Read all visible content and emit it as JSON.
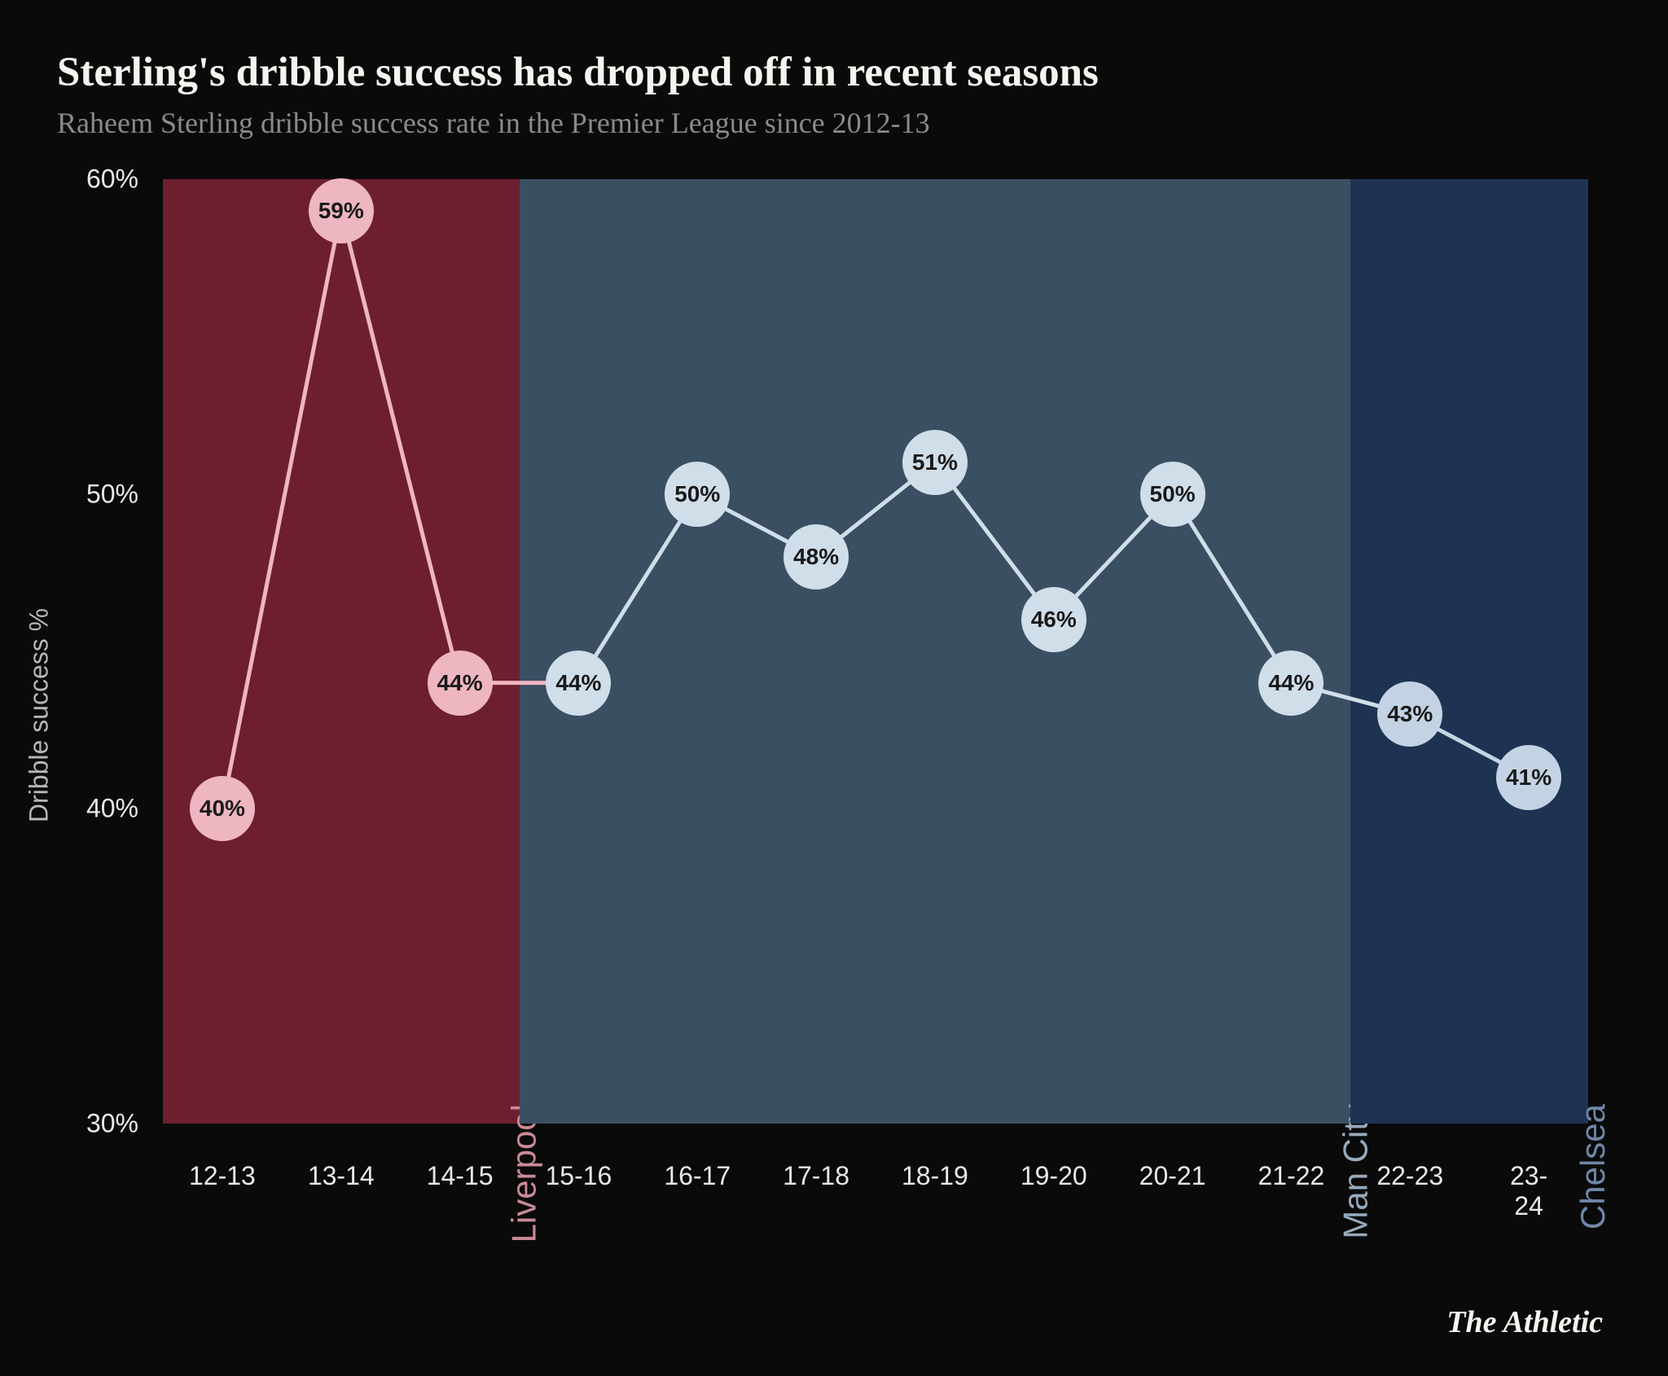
{
  "title": "Sterling's dribble success has dropped off in recent seasons",
  "subtitle": "Raheem Sterling dribble success rate in the Premier League since 2012-13",
  "ylabel": "Dribble success %",
  "source": "The Athletic",
  "background_color": "#0a0a0a",
  "title_color": "#f5f5f0",
  "subtitle_color": "#8a8a8a",
  "chart": {
    "type": "line",
    "ylim": [
      30,
      60
    ],
    "yticks": [
      30,
      40,
      50,
      60
    ],
    "ytick_labels": [
      "30%",
      "40%",
      "50%",
      "60%"
    ],
    "xtick_labels": [
      "12-13",
      "13-14",
      "14-15",
      "15-16",
      "16-17",
      "17-18",
      "18-19",
      "19-20",
      "20-21",
      "21-22",
      "22-23",
      "23-24"
    ],
    "values": [
      40,
      59,
      44,
      44,
      50,
      48,
      51,
      46,
      50,
      44,
      43,
      41
    ],
    "point_labels": [
      "40%",
      "59%",
      "44%",
      "44%",
      "50%",
      "48%",
      "51%",
      "46%",
      "50%",
      "44%",
      "43%",
      "41%"
    ],
    "marker_radius": 40,
    "marker_fontsize": 28,
    "line_width": 5,
    "bands": [
      {
        "label": "Liverpool",
        "start_idx": 0,
        "end_idx": 2,
        "fill": "#6e1f2f",
        "label_color": "#c98b95",
        "line_color": "#eeb6c1",
        "marker_fill": "#eeb6c1"
      },
      {
        "label": "Man City",
        "start_idx": 3,
        "end_idx": 9,
        "fill": "#3b4f62",
        "label_color": "#97aabb",
        "line_color": "#d0deea",
        "marker_fill": "#d0deea"
      },
      {
        "label": "Chelsea",
        "start_idx": 10,
        "end_idx": 11,
        "fill": "#1e3352",
        "label_color": "#6f87a8",
        "line_color": "#c3d3e3",
        "marker_fill": "#c3d3e3"
      }
    ],
    "tick_fontsize": 32,
    "tick_color": "#e8e8e8",
    "band_label_fontsize": 42
  }
}
